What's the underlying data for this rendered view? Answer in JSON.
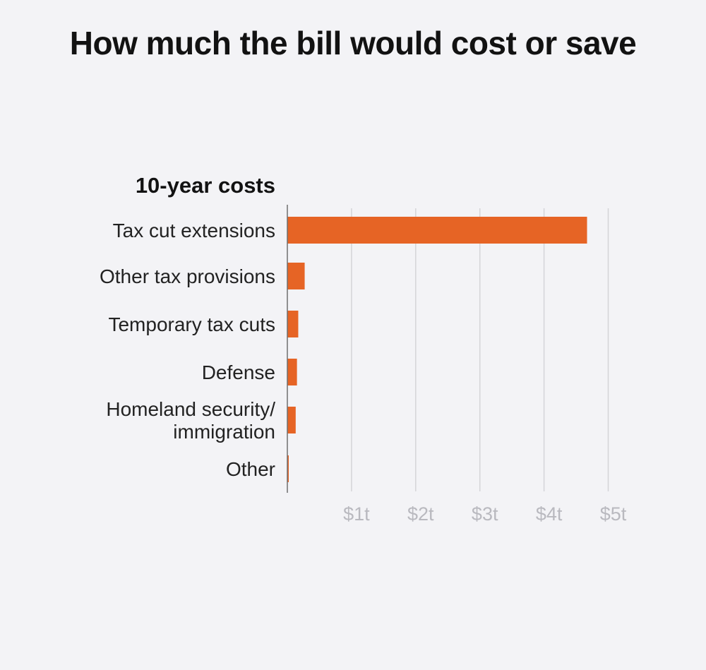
{
  "title": "How much the bill would cost or save",
  "colors": {
    "bar": "#e66425",
    "grid": "#d4d4d8",
    "axis": "#6e6e6e",
    "tick_label": "#b9b9bf",
    "background": "#f3f3f6"
  },
  "chart_data": {
    "type": "bar",
    "orientation": "horizontal",
    "heading": "10-year costs",
    "categories": [
      [
        "Tax cut extensions"
      ],
      [
        "Other tax provisions"
      ],
      [
        "Temporary tax cuts"
      ],
      [
        "Defense"
      ],
      [
        "Homeland security/",
        "immigration"
      ],
      [
        "Other"
      ]
    ],
    "values": [
      4.67,
      0.27,
      0.17,
      0.15,
      0.13,
      0.02
    ],
    "unit": "trillion dollars",
    "xlim": [
      0,
      5
    ],
    "ticks": [
      1,
      2,
      3,
      4,
      5
    ],
    "tick_labels": [
      "$1t",
      "$2t",
      "$3t",
      "$4t",
      "$5t"
    ],
    "grid": true
  }
}
